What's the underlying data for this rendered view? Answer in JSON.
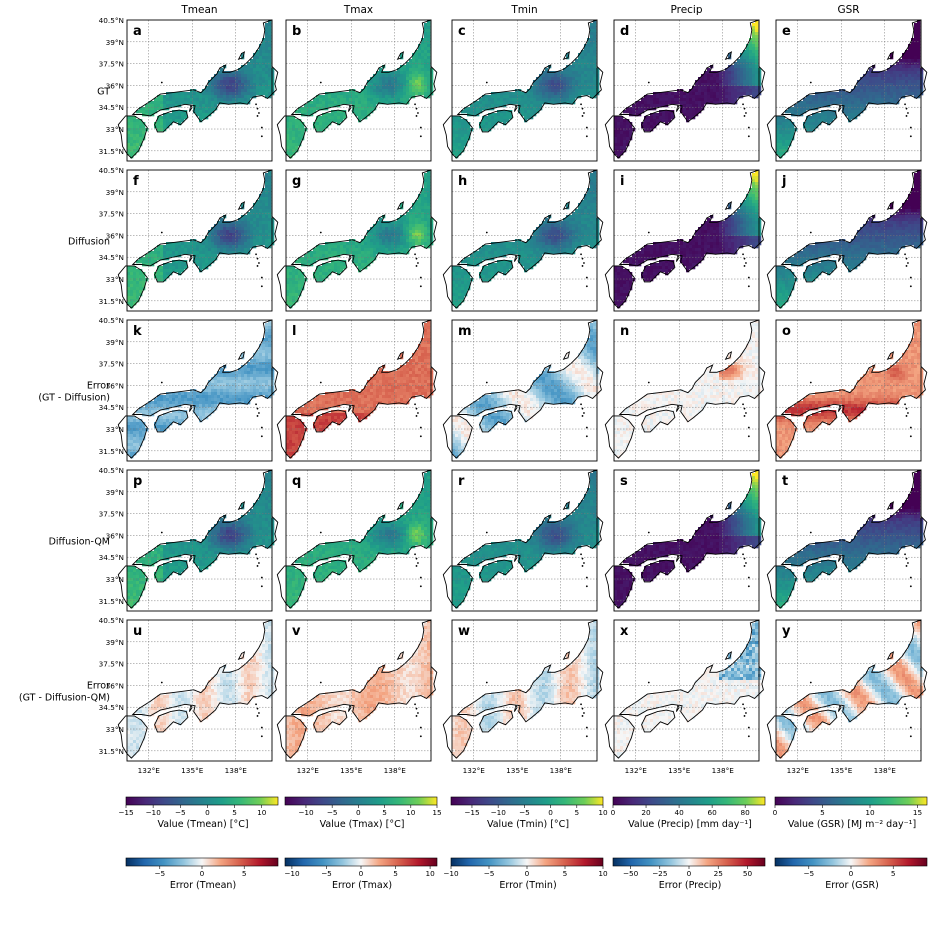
{
  "columns": [
    "Tmean",
    "Tmax",
    "Tmin",
    "Precip",
    "GSR"
  ],
  "rows": [
    {
      "label": [
        "GT"
      ],
      "kind": "value",
      "letters": [
        "a",
        "b",
        "c",
        "d",
        "e"
      ]
    },
    {
      "label": [
        "Diffusion"
      ],
      "kind": "value",
      "letters": [
        "f",
        "g",
        "h",
        "i",
        "j"
      ]
    },
    {
      "label": [
        "Error",
        "(GT - Diffusion)"
      ],
      "kind": "error",
      "letters": [
        "k",
        "l",
        "m",
        "n",
        "o"
      ]
    },
    {
      "label": [
        "Diffusion-QM"
      ],
      "kind": "value",
      "letters": [
        "p",
        "q",
        "r",
        "s",
        "t"
      ]
    },
    {
      "label": [
        "Error",
        "(GT - Diffusion-QM)"
      ],
      "kind": "error",
      "letters": [
        "u",
        "v",
        "w",
        "x",
        "y"
      ]
    }
  ],
  "lat_ticks": [
    "40.5°N",
    "39°N",
    "37.5°N",
    "36°N",
    "34.5°N",
    "33°N",
    "31.5°N"
  ],
  "lon_ticks": [
    "132°E",
    "135°E",
    "138°E"
  ],
  "chart_data": {
    "type": "heatmap",
    "map_extent": {
      "lon": [
        130.5,
        140.5
      ],
      "lat": [
        30.8,
        40.5
      ]
    },
    "value_colorbars": [
      {
        "label": "Value (Tmean) [$^\\circ$C]",
        "label_text": "Value (Tmean) [°C]",
        "min": -15,
        "max": 13,
        "ticks": [
          -15,
          -10,
          -5,
          0,
          5,
          10
        ],
        "cmap": "viridis"
      },
      {
        "label_text": "Value (Tmax) [°C]",
        "min": -14,
        "max": 15,
        "ticks": [
          -10,
          -5,
          0,
          5,
          10,
          15
        ],
        "cmap": "viridis"
      },
      {
        "label_text": "Value (Tmin) [°C]",
        "min": -19,
        "max": 10,
        "ticks": [
          -15,
          -10,
          -5,
          0,
          5,
          10
        ],
        "cmap": "viridis"
      },
      {
        "label_text": "Value (Precip) [mm day⁻¹]",
        "min": 0,
        "max": 92,
        "ticks": [
          0,
          20,
          40,
          60,
          80
        ],
        "cmap": "viridis"
      },
      {
        "label_text": "Value (GSR) [MJ m⁻² day⁻¹]",
        "min": 0,
        "max": 16,
        "ticks": [
          0,
          5,
          10,
          15
        ],
        "cmap": "viridis"
      }
    ],
    "error_colorbars": [
      {
        "label_text": "Error (Tmean)",
        "min": -9,
        "max": 9,
        "ticks": [
          -5,
          0,
          5
        ],
        "cmap": "RdBu_r"
      },
      {
        "label_text": "Error (Tmax)",
        "min": -11,
        "max": 11,
        "ticks": [
          -10,
          -5,
          0,
          5,
          10
        ],
        "cmap": "RdBu_r"
      },
      {
        "label_text": "Error (Tmin)",
        "min": -10,
        "max": 10,
        "ticks": [
          -10,
          -5,
          0,
          5,
          10
        ],
        "cmap": "RdBu_r"
      },
      {
        "label_text": "Error (Precip)",
        "min": -65,
        "max": 65,
        "ticks": [
          -50,
          -25,
          0,
          25,
          50
        ],
        "cmap": "RdBu_r"
      },
      {
        "label_text": "Error (GSR)",
        "min": -9,
        "max": 9,
        "ticks": [
          -5,
          0,
          5
        ],
        "cmap": "RdBu_r"
      }
    ]
  }
}
